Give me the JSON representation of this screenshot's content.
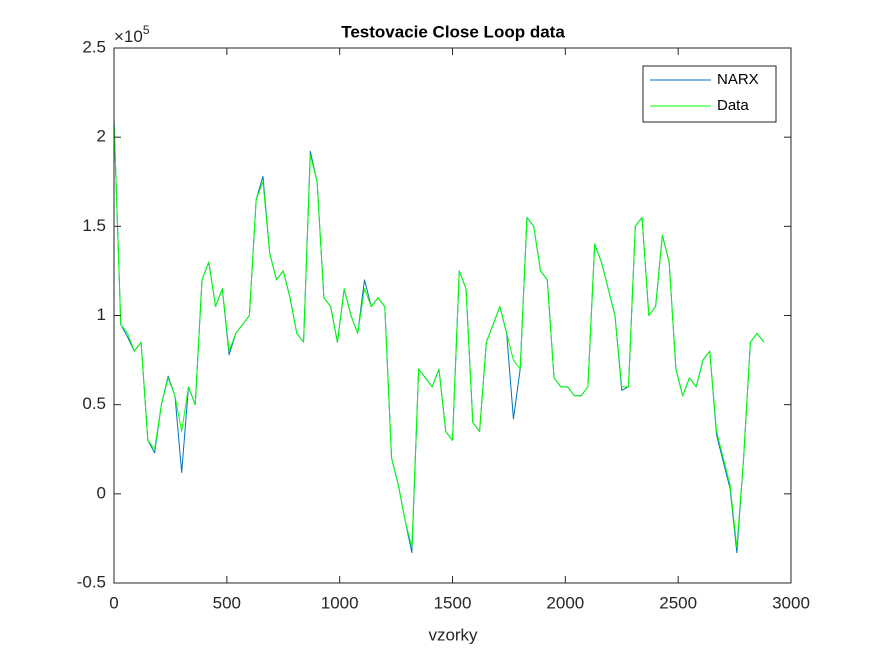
{
  "chart_data": {
    "type": "line",
    "title": "Testovacie Close Loop data",
    "xlabel": "vzorky",
    "y_multiplier": "×10",
    "y_multiplier_exponent": "5",
    "xlim": [
      0,
      3000
    ],
    "xticks": [
      0,
      500,
      1000,
      1500,
      2000,
      2500,
      3000
    ],
    "ylim": [
      -0.5,
      2.5
    ],
    "yticks": [
      -0.5,
      0,
      0.5,
      1,
      1.5,
      2,
      2.5
    ],
    "legend_position": "upper right",
    "x": [
      0,
      30,
      60,
      90,
      120,
      150,
      180,
      210,
      240,
      270,
      300,
      330,
      360,
      390,
      420,
      450,
      480,
      510,
      540,
      570,
      600,
      630,
      660,
      690,
      720,
      750,
      780,
      810,
      840,
      870,
      900,
      930,
      960,
      990,
      1020,
      1050,
      1080,
      1110,
      1140,
      1170,
      1200,
      1230,
      1260,
      1290,
      1320,
      1350,
      1380,
      1410,
      1440,
      1470,
      1500,
      1530,
      1560,
      1590,
      1620,
      1650,
      1680,
      1710,
      1740,
      1770,
      1800,
      1830,
      1860,
      1890,
      1920,
      1950,
      1980,
      2010,
      2040,
      2070,
      2100,
      2130,
      2160,
      2190,
      2220,
      2250,
      2280,
      2310,
      2340,
      2370,
      2400,
      2430,
      2460,
      2490,
      2520,
      2550,
      2580,
      2610,
      2640,
      2670,
      2700,
      2730,
      2760,
      2790,
      2820,
      2850,
      2880
    ],
    "series": [
      {
        "name": "NARX",
        "color": "#0072bd",
        "values": [
          2.1,
          0.95,
          0.88,
          0.8,
          0.85,
          0.3,
          0.23,
          0.5,
          0.66,
          0.55,
          0.12,
          0.6,
          0.5,
          1.2,
          1.3,
          1.05,
          1.15,
          0.78,
          0.9,
          0.95,
          1.0,
          1.65,
          1.78,
          1.35,
          1.2,
          1.25,
          1.1,
          0.9,
          0.85,
          1.92,
          1.75,
          1.1,
          1.05,
          0.85,
          1.15,
          1.0,
          0.9,
          1.2,
          1.05,
          1.1,
          1.05,
          0.2,
          0.05,
          -0.15,
          -0.33,
          0.7,
          0.65,
          0.6,
          0.7,
          0.35,
          0.3,
          1.25,
          1.15,
          0.4,
          0.35,
          0.85,
          0.95,
          1.05,
          0.9,
          0.42,
          0.7,
          1.55,
          1.5,
          1.25,
          1.2,
          0.65,
          0.6,
          0.6,
          0.55,
          0.55,
          0.6,
          1.4,
          1.3,
          1.15,
          1.0,
          0.58,
          0.6,
          1.5,
          1.55,
          1.0,
          1.05,
          1.45,
          1.3,
          0.7,
          0.55,
          0.65,
          0.6,
          0.75,
          0.8,
          0.33,
          0.18,
          0.03,
          -0.33,
          0.2,
          0.85,
          0.9,
          0.85
        ]
      },
      {
        "name": "Data",
        "color": "#00ff00",
        "values": [
          2.1,
          0.95,
          0.9,
          0.8,
          0.85,
          0.3,
          0.25,
          0.5,
          0.65,
          0.55,
          0.35,
          0.6,
          0.5,
          1.2,
          1.3,
          1.05,
          1.15,
          0.8,
          0.9,
          0.95,
          1.0,
          1.65,
          1.75,
          1.35,
          1.2,
          1.25,
          1.1,
          0.9,
          0.85,
          1.9,
          1.75,
          1.1,
          1.05,
          0.85,
          1.15,
          1.0,
          0.9,
          1.15,
          1.05,
          1.1,
          1.05,
          0.2,
          0.05,
          -0.15,
          -0.3,
          0.7,
          0.65,
          0.6,
          0.7,
          0.35,
          0.3,
          1.25,
          1.15,
          0.4,
          0.35,
          0.85,
          0.95,
          1.05,
          0.9,
          0.75,
          0.7,
          1.55,
          1.5,
          1.25,
          1.2,
          0.65,
          0.6,
          0.6,
          0.55,
          0.55,
          0.6,
          1.4,
          1.3,
          1.15,
          1.0,
          0.6,
          0.6,
          1.5,
          1.55,
          1.0,
          1.05,
          1.45,
          1.3,
          0.7,
          0.55,
          0.65,
          0.6,
          0.75,
          0.8,
          0.35,
          0.2,
          0.05,
          -0.3,
          0.2,
          0.85,
          0.9,
          0.85
        ]
      }
    ]
  }
}
